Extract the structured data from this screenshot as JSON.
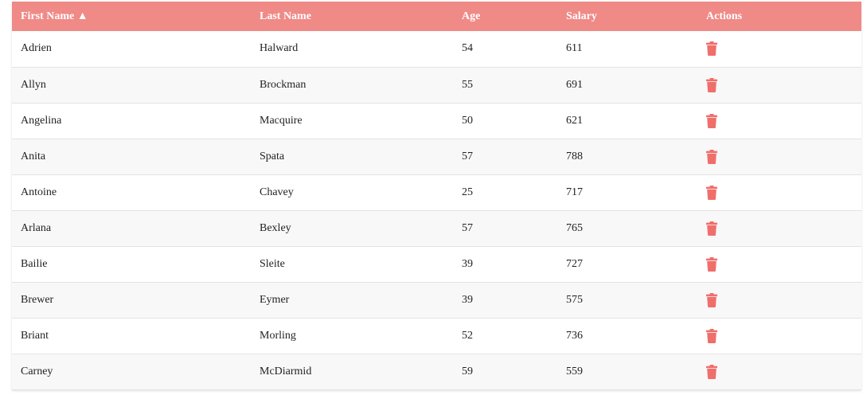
{
  "colors": {
    "header_bg": "#ef8a87",
    "header_text": "#ffffff",
    "trash_icon": "#ef6f6b",
    "row_alt_bg": "#f8f8f8"
  },
  "table": {
    "columns": [
      {
        "label": "First Name ▲",
        "sorted": "ascending"
      },
      {
        "label": "Last Name"
      },
      {
        "label": "Age"
      },
      {
        "label": "Salary"
      },
      {
        "label": "Actions"
      }
    ],
    "rows": [
      {
        "first_name": "Adrien",
        "last_name": "Halward",
        "age": "54",
        "salary": "611",
        "action_icon": "trash-icon"
      },
      {
        "first_name": "Allyn",
        "last_name": "Brockman",
        "age": "55",
        "salary": "691",
        "action_icon": "trash-icon"
      },
      {
        "first_name": "Angelina",
        "last_name": "Macquire",
        "age": "50",
        "salary": "621",
        "action_icon": "trash-icon"
      },
      {
        "first_name": "Anita",
        "last_name": "Spata",
        "age": "57",
        "salary": "788",
        "action_icon": "trash-icon"
      },
      {
        "first_name": "Antoine",
        "last_name": "Chavey",
        "age": "25",
        "salary": "717",
        "action_icon": "trash-icon"
      },
      {
        "first_name": "Arlana",
        "last_name": "Bexley",
        "age": "57",
        "salary": "765",
        "action_icon": "trash-icon"
      },
      {
        "first_name": "Bailie",
        "last_name": "Sleite",
        "age": "39",
        "salary": "727",
        "action_icon": "trash-icon"
      },
      {
        "first_name": "Brewer",
        "last_name": "Eymer",
        "age": "39",
        "salary": "575",
        "action_icon": "trash-icon"
      },
      {
        "first_name": "Briant",
        "last_name": "Morling",
        "age": "52",
        "salary": "736",
        "action_icon": "trash-icon"
      },
      {
        "first_name": "Carney",
        "last_name": "McDiarmid",
        "age": "59",
        "salary": "559",
        "action_icon": "trash-icon"
      }
    ]
  }
}
